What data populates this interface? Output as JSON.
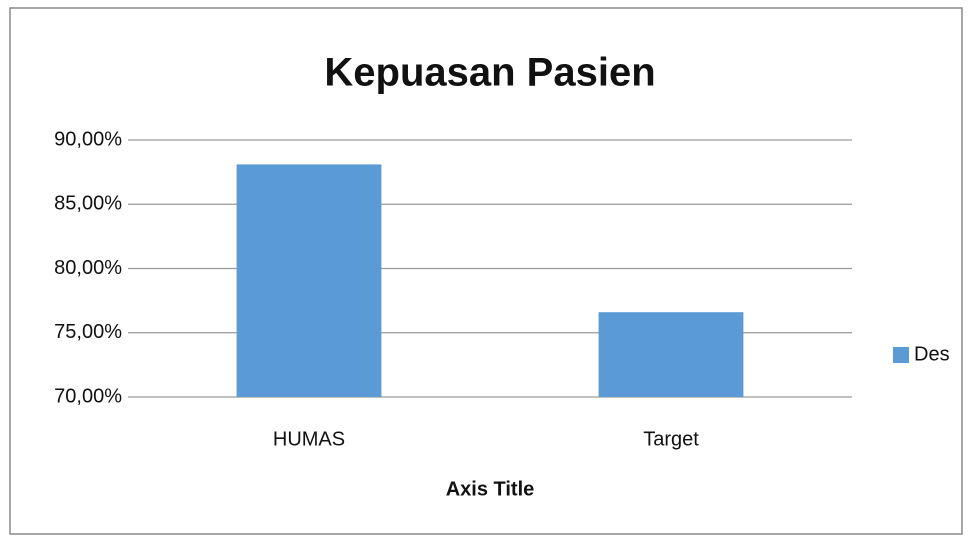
{
  "chart_data": {
    "type": "bar",
    "title": "Kepuasan Pasien",
    "x_label": "Axis Title",
    "categories": [
      "HUMAS",
      "Target"
    ],
    "series": [
      {
        "name": "Des",
        "color": "#5b9bd5",
        "values": [
          88.1,
          76.6
        ]
      }
    ],
    "ylim": [
      70,
      90
    ],
    "yticks": [
      {
        "value": 70,
        "label": "70,00%"
      },
      {
        "value": 75,
        "label": "75,00%"
      },
      {
        "value": 80,
        "label": "80,00%"
      },
      {
        "value": 85,
        "label": "85,00%"
      },
      {
        "value": 90,
        "label": "90,00%"
      }
    ],
    "grid": true,
    "legend": "right"
  }
}
